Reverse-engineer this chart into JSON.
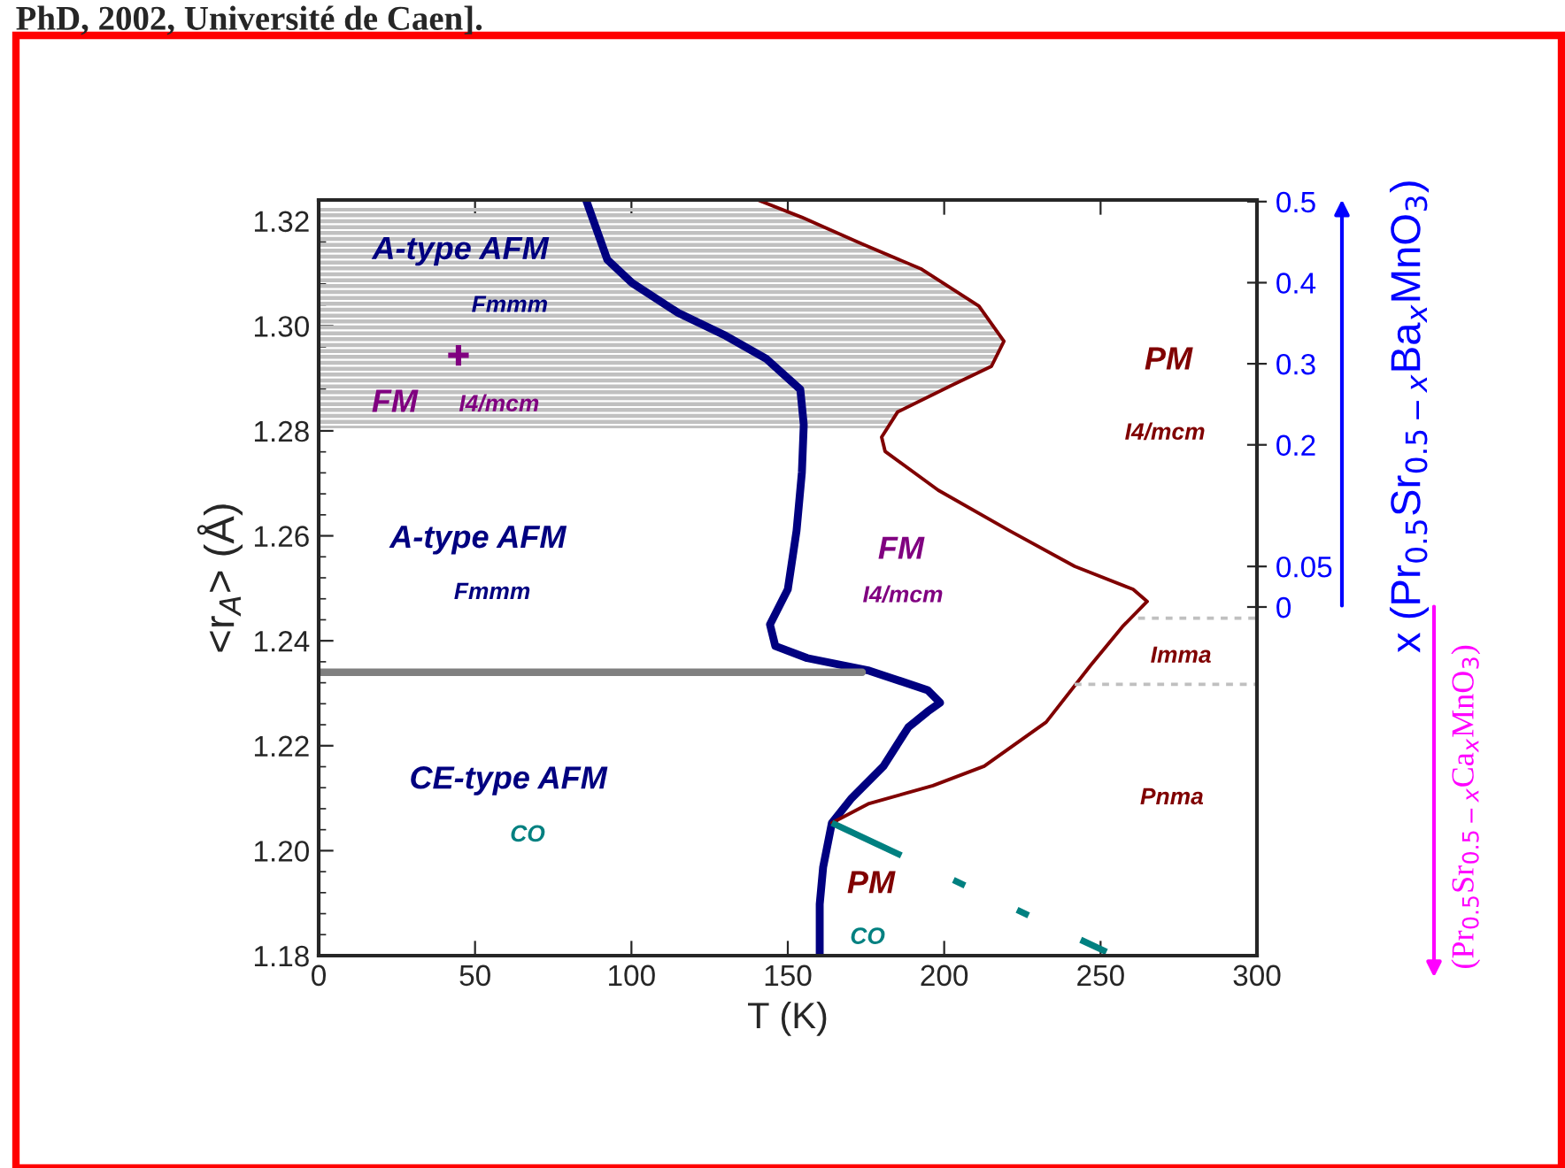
{
  "chart_data": {
    "type": "line",
    "xlabel": "T (K)",
    "ylabel": "<r$_{A}$> (Å)",
    "y2label": "x (Pr$_{0.5}$Sr$_{0.5−x}$Ba$_{x}$MnO$_{3}$)",
    "xlim": [
      0,
      300
    ],
    "xticks": [
      0,
      50,
      100,
      150,
      200,
      250,
      300
    ],
    "ylim": [
      1.18,
      1.324
    ],
    "yticks": [
      1.18,
      {
        "value": 1.2,
        "label": "1.20"
      },
      1.22,
      1.24,
      1.26,
      1.28,
      {
        "value": 1.3,
        "label": "1.30"
      },
      1.32
    ],
    "y2lim": [
      -0.43,
      0.502
    ],
    "y2ticks": [
      0.5,
      0.4,
      0.3,
      0.2,
      0.05,
      0
    ],
    "grid": false,
    "legend": false,
    "bands": [
      {
        "axis": "y",
        "from": 1.2805,
        "to": 1.3225,
        "color": "#c0c0c0"
      }
    ],
    "series": [
      {
        "color": "#000080",
        "line_style": "solid",
        "x": [
          85.5,
          92.3,
          100.2,
          114.9,
          130.2,
          143.2,
          154.0,
          155.1,
          154.5,
          152.8,
          150.0,
          144.3,
          146.0,
          156.2,
          176.0,
          194.7,
          198.7,
          194.7,
          188.5,
          180.6,
          170.4,
          164.1,
          161.3,
          160.2,
          160.2
        ],
        "values": [
          1.324,
          1.3126,
          1.3082,
          1.3025,
          1.2981,
          1.2937,
          1.2879,
          1.2812,
          1.2721,
          1.261,
          1.2498,
          1.2431,
          1.239,
          1.2367,
          1.2343,
          1.2306,
          1.2282,
          1.2265,
          1.2235,
          1.2161,
          1.21,
          1.2053,
          1.1969,
          1.1898,
          1.18
        ]
      },
      {
        "color": "#800000",
        "line_style": "solid",
        "x": [
          140.4,
          154.5,
          173.8,
          192.5,
          211.1,
          219.1,
          215.1,
          202.1,
          185.1,
          180.0,
          181.1,
          198.1,
          220.8,
          241.7,
          260.4,
          264.9,
          257.0,
          246.8,
          232.6,
          212.8,
          196.4,
          176.0,
          166.4,
          164.1
        ],
        "values": [
          1.324,
          1.3207,
          1.3156,
          1.3109,
          1.3038,
          1.2971,
          1.2923,
          1.2886,
          1.2836,
          1.2788,
          1.2761,
          1.2687,
          1.261,
          1.2542,
          1.2498,
          1.2475,
          1.2427,
          1.2353,
          1.2245,
          1.2161,
          1.2124,
          1.209,
          1.206,
          1.2053
        ]
      },
      {
        "color": "#008080",
        "line_style": "dashed",
        "x": [
          164.1,
          251.9
        ],
        "values": [
          1.2053,
          1.1807
        ]
      },
      {
        "color": "#808080",
        "line_style": "solid",
        "x": [
          0,
          173.8
        ],
        "values": [
          1.234,
          1.234
        ]
      },
      {
        "color": "#c0c0c0",
        "line_style": "dotted",
        "x": [
          262,
          300
        ],
        "values": [
          1.2443,
          1.2443
        ]
      },
      {
        "color": "#c0c0c0",
        "line_style": "dotted",
        "x": [
          241.7,
          300
        ],
        "values": [
          1.2317,
          1.2317
        ]
      },
      {
        "type": "scatter",
        "color": "#800080",
        "marker": "cross",
        "x": [
          44.7
        ],
        "values": [
          1.2944
        ]
      }
    ],
    "annotations": [
      "PhD, 2002, Université de Caen].",
      "(Pr$_{0.5}$Sr$_{0.5−x}$Ca$_{x}$MnO$_{3}$)",
      "A-type AFM",
      "Fmmm",
      "FM",
      "I4/mcm",
      "A-type AFM",
      "Fmmm",
      "FM",
      "I4/mcm",
      "PM",
      "I4/mcm",
      "Imma",
      "Pnma",
      "CE-type AFM",
      "CO",
      "PM",
      "CO"
    ]
  }
}
